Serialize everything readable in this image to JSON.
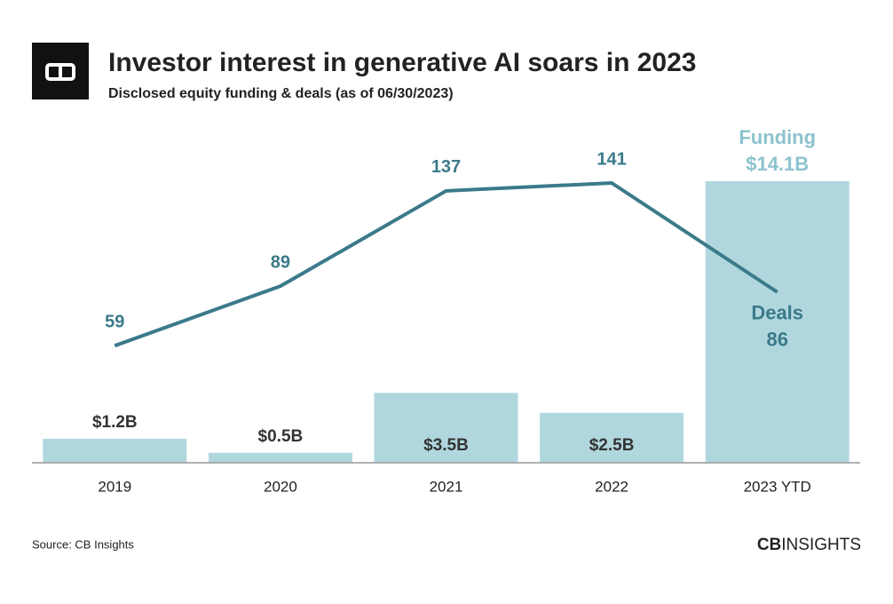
{
  "chart_data": {
    "type": "combo",
    "title": "Investor interest in generative AI soars in 2023",
    "subtitle": "Disclosed equity funding & deals (as of 06/30/2023)",
    "source": "Source: CB Insights",
    "categories": [
      "2019",
      "2020",
      "2021",
      "2022",
      "2023 YTD"
    ],
    "series": [
      {
        "name": "Funding",
        "type": "bar",
        "color": "#b1d7de",
        "values": [
          1.2,
          0.5,
          3.5,
          2.5,
          14.1
        ],
        "value_labels": [
          "$1.2B",
          "$0.5B",
          "$3.5B",
          "$2.5B",
          "$14.1B"
        ]
      },
      {
        "name": "Deals",
        "type": "line",
        "axis": "y2",
        "color": "#3b7a8a",
        "values": [
          59,
          89,
          137,
          141,
          86
        ]
      }
    ]
  },
  "brand": {
    "logo_bold": "CB",
    "logo_rest": "INSIGHTS"
  }
}
